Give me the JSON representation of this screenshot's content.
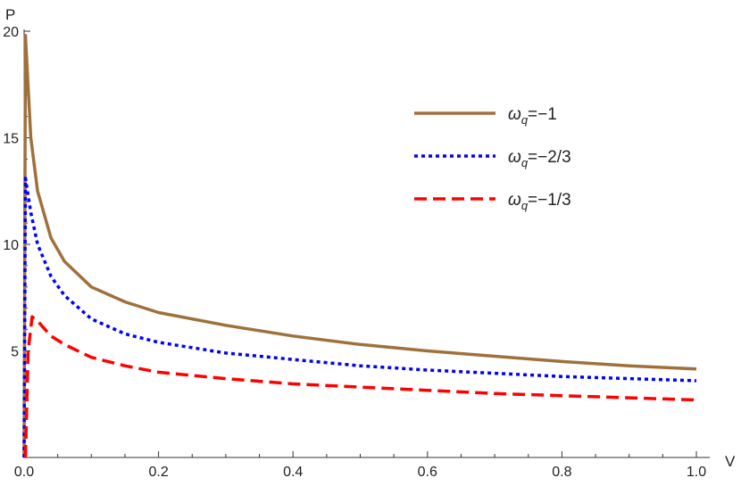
{
  "chart_data": {
    "type": "line",
    "title": "",
    "xlabel": "V",
    "ylabel": "P",
    "xlim": [
      0,
      1.02
    ],
    "ylim": [
      0,
      20.5
    ],
    "x_ticks": [
      "0.0",
      "0.2",
      "0.4",
      "0.6",
      "0.8",
      "1.0"
    ],
    "y_ticks": [
      "5",
      "10",
      "15",
      "20"
    ],
    "grid": false,
    "legend_position": "top-right",
    "series": [
      {
        "name": "ω_q=−1",
        "legend_main": "ω",
        "legend_sub": "q",
        "legend_rest": "=−1",
        "color": "#a0703c",
        "style": "solid",
        "points": [
          [
            0,
            0
          ],
          [
            0.002,
            19.8
          ],
          [
            0.01,
            15
          ],
          [
            0.02,
            12.5
          ],
          [
            0.04,
            10.3
          ],
          [
            0.06,
            9.2
          ],
          [
            0.1,
            8.0
          ],
          [
            0.15,
            7.3
          ],
          [
            0.2,
            6.8
          ],
          [
            0.3,
            6.2
          ],
          [
            0.4,
            5.7
          ],
          [
            0.5,
            5.3
          ],
          [
            0.6,
            5.0
          ],
          [
            0.7,
            4.75
          ],
          [
            0.8,
            4.5
          ],
          [
            0.9,
            4.3
          ],
          [
            1.0,
            4.15
          ]
        ]
      },
      {
        "name": "ω_q=−2/3",
        "legend_main": "ω",
        "legend_sub": "q",
        "legend_rest": "=−2/3",
        "color": "#0000ff",
        "style": "dotted",
        "points": [
          [
            0,
            0
          ],
          [
            0.002,
            13.1
          ],
          [
            0.01,
            11.5
          ],
          [
            0.02,
            10
          ],
          [
            0.04,
            8.5
          ],
          [
            0.06,
            7.6
          ],
          [
            0.1,
            6.5
          ],
          [
            0.15,
            5.8
          ],
          [
            0.2,
            5.4
          ],
          [
            0.3,
            4.9
          ],
          [
            0.4,
            4.6
          ],
          [
            0.5,
            4.3
          ],
          [
            0.6,
            4.1
          ],
          [
            0.7,
            3.95
          ],
          [
            0.8,
            3.8
          ],
          [
            0.9,
            3.7
          ],
          [
            1.0,
            3.6
          ]
        ]
      },
      {
        "name": "ω_q=−1/3",
        "legend_main": "ω",
        "legend_sub": "q",
        "legend_rest": "=−1/3",
        "color": "#ff0000",
        "style": "dashed",
        "points": [
          [
            0.002,
            0
          ],
          [
            0.006,
            5
          ],
          [
            0.012,
            6.6
          ],
          [
            0.02,
            6.4
          ],
          [
            0.04,
            5.7
          ],
          [
            0.06,
            5.3
          ],
          [
            0.1,
            4.7
          ],
          [
            0.15,
            4.3
          ],
          [
            0.2,
            4.0
          ],
          [
            0.3,
            3.7
          ],
          [
            0.4,
            3.45
          ],
          [
            0.5,
            3.3
          ],
          [
            0.6,
            3.15
          ],
          [
            0.7,
            3.0
          ],
          [
            0.8,
            2.9
          ],
          [
            0.9,
            2.8
          ],
          [
            1.0,
            2.7
          ]
        ]
      }
    ]
  }
}
